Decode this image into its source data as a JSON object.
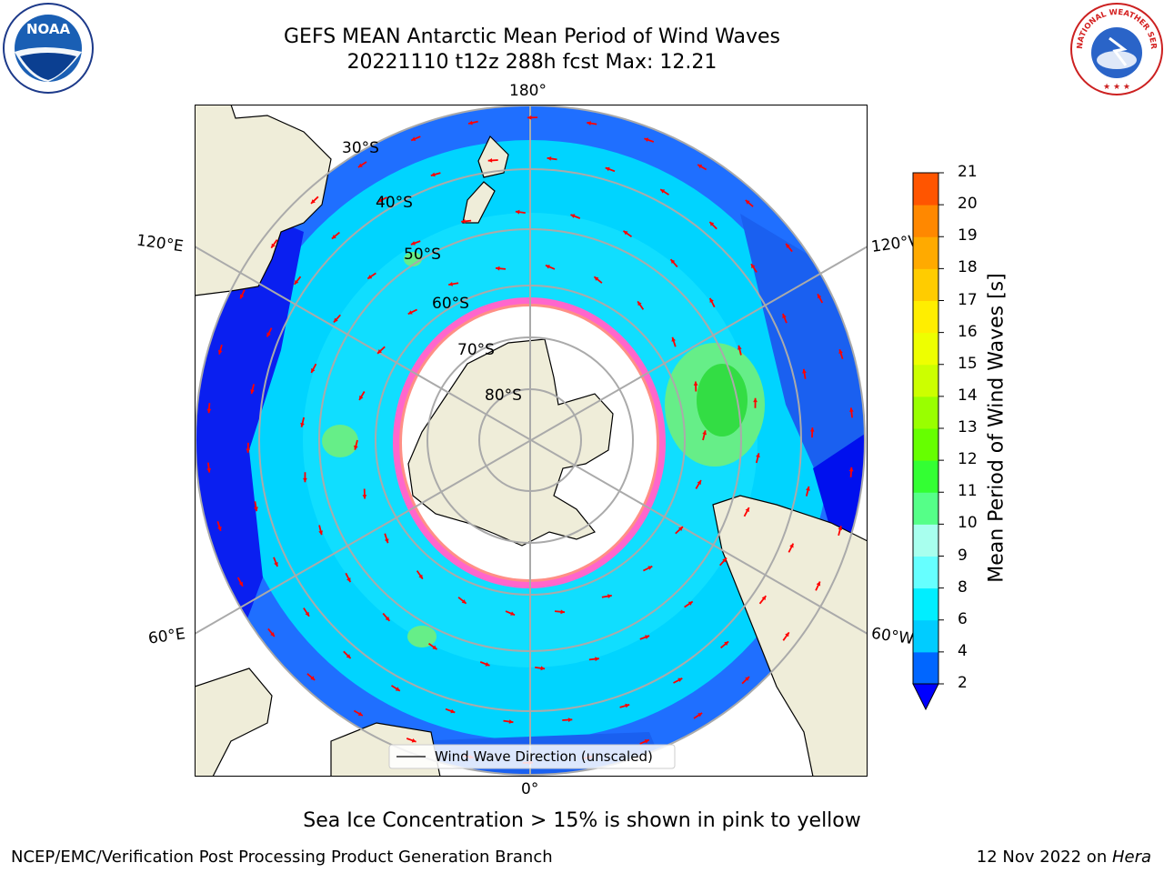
{
  "title_line1": "GEFS MEAN Antarctic Mean Period of Wind Waves",
  "title_line2": "20221110 t12z 288h fcst   Max: 12.21",
  "lon_labels": {
    "top": "180°",
    "bottom": "0°",
    "left_upper": "120°E",
    "left_lower": "60°E",
    "right_upper": "120°W",
    "right_lower": "60°W"
  },
  "lat_labels": [
    "30°S",
    "40°S",
    "50°S",
    "60°S",
    "70°S",
    "80°S"
  ],
  "legend_label": "Wind Wave Direction (unscaled)",
  "colorbar": {
    "label": "Mean Period of Wind Waves [s]",
    "ticks": [
      "2",
      "4",
      "6",
      "8",
      "9",
      "10",
      "11",
      "12",
      "13",
      "14",
      "15",
      "16",
      "17",
      "18",
      "19",
      "20",
      "21"
    ],
    "colors": [
      "#0000ff",
      "#0066ff",
      "#00ccff",
      "#00eeff",
      "#66ffff",
      "#a8ffee",
      "#55ff88",
      "#33ff33",
      "#66ff00",
      "#99ff00",
      "#ccff00",
      "#eeff00",
      "#ffee00",
      "#ffcc00",
      "#ffaa00",
      "#ff8800",
      "#ff5500",
      "#ff2200"
    ]
  },
  "logos": {
    "left": "NOAA",
    "right": "NATIONAL WEATHER SERVICE"
  },
  "subtitle": "Sea Ice Concentration > 15% is shown in pink to yellow",
  "footer_left": "NCEP/EMC/Verification Post Processing Product Generation Branch",
  "footer_right_prefix": "12 Nov 2022 on ",
  "footer_right_host": "Hera"
}
